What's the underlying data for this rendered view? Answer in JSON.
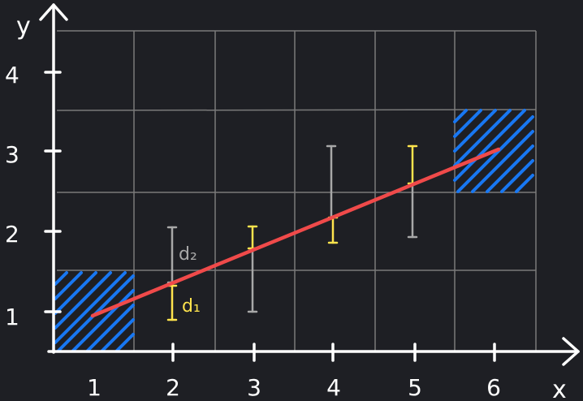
{
  "axes": {
    "x_label": "x",
    "y_label": "y",
    "x_ticks": [
      "1",
      "2",
      "3",
      "4",
      "5",
      "6"
    ],
    "y_ticks": [
      "1",
      "2",
      "3",
      "4"
    ]
  },
  "annotations": {
    "d1": "d₁",
    "d2": "d₂"
  },
  "colors": {
    "background": "#1e1f24",
    "axis": "#ffffff",
    "grid": "#7a7a7a",
    "regression_line": "#f04a4a",
    "error_yellow": "#ffe44d",
    "error_gray": "#a8a8a8",
    "hatch": "#1877f2"
  }
}
